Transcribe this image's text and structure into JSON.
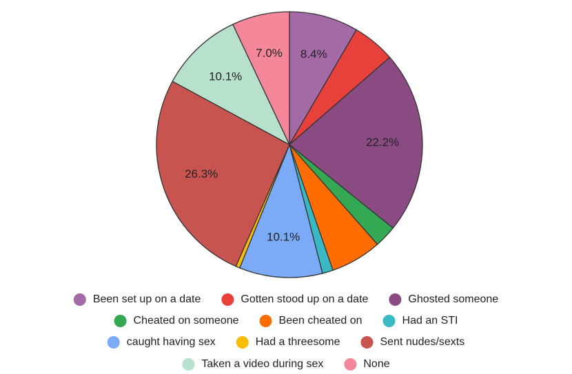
{
  "chart_data": {
    "type": "pie",
    "categories": [
      "Been set up on a date",
      "Gotten stood up on a date",
      "Ghosted someone",
      "Cheated on someone",
      "Been cheated on",
      "Had an STI",
      "caught having sex",
      "Had a threesome",
      "Sent nudes/sexts",
      "Taken a video during sex",
      "None"
    ],
    "values": [
      8.4,
      5.2,
      22.2,
      2.7,
      6.2,
      1.3,
      10.1,
      0.5,
      26.3,
      10.1,
      7.0
    ],
    "value_labels": [
      "8.4%",
      null,
      "22.2%",
      null,
      null,
      null,
      "10.1%",
      null,
      "26.3%",
      "10.1%",
      "7.0%"
    ],
    "colors": [
      "#a46aa6",
      "#e8413c",
      "#8a4a82",
      "#34a853",
      "#ff6d01",
      "#3ab8c4",
      "#7baaf7",
      "#fbbc04",
      "#c85450",
      "#b7e1cd",
      "#f4889a"
    ],
    "legend": "bottom"
  }
}
